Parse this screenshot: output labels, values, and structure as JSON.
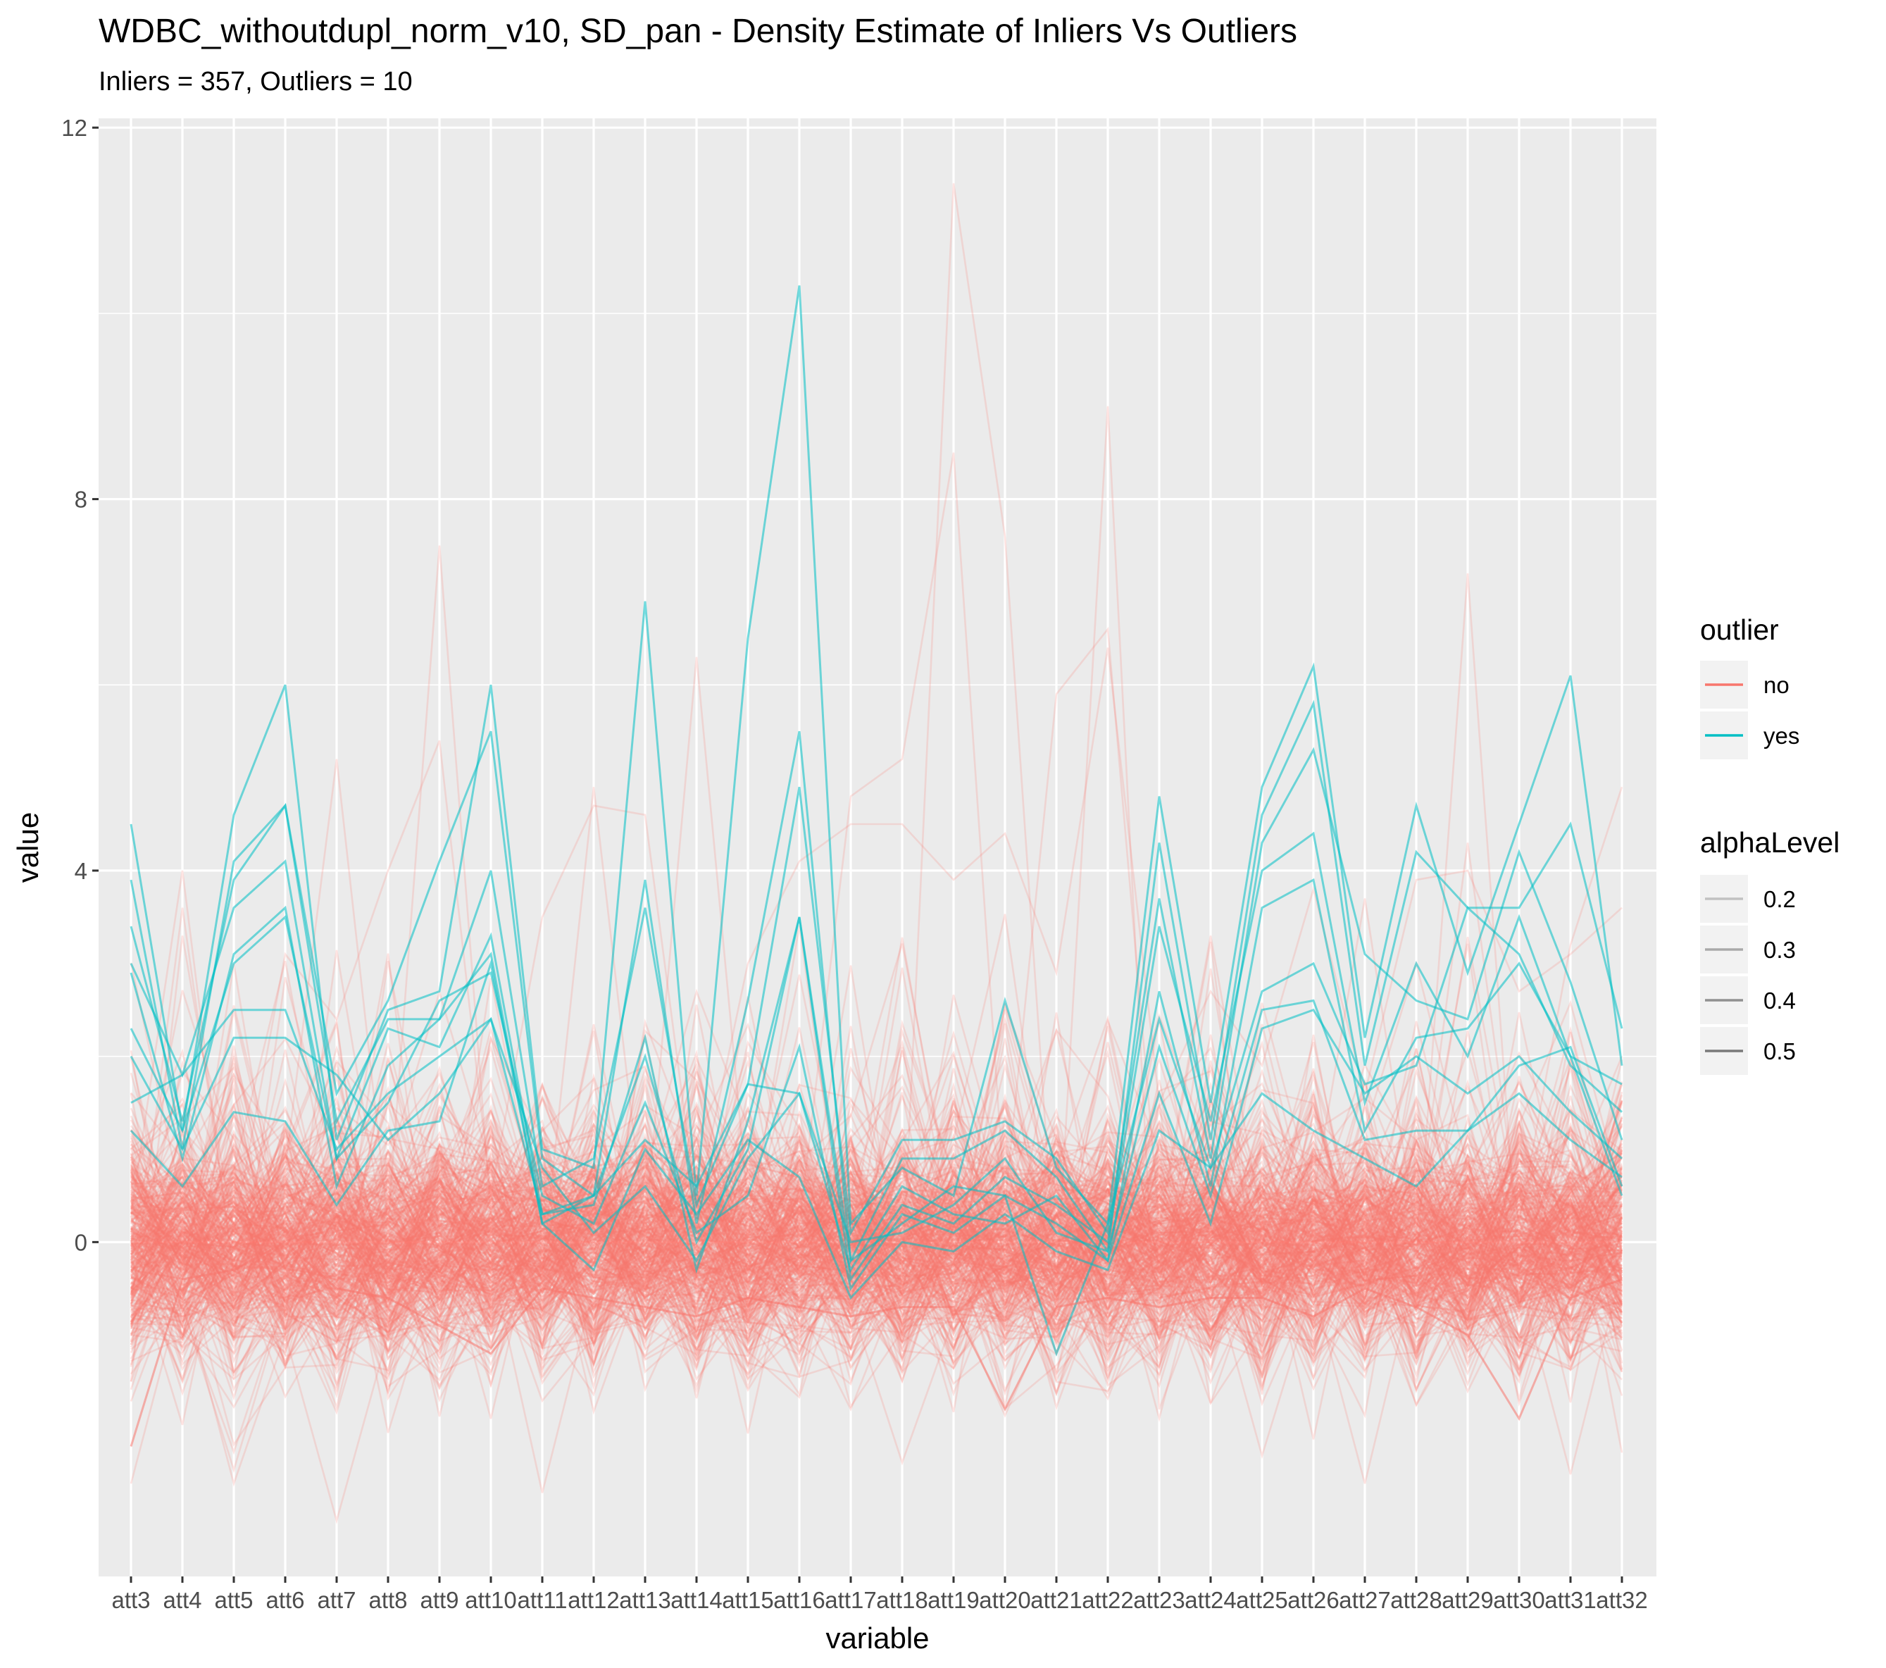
{
  "chart_data": {
    "type": "line",
    "title": "WDBC_withoutdupl_norm_v10, SD_pan - Density Estimate of Inliers Vs Outliers",
    "subtitle": "Inliers = 357, Outliers = 10",
    "xlabel": "variable",
    "ylabel": "value",
    "ylim": [
      -3.6,
      12.1
    ],
    "yticks": [
      0,
      4,
      8,
      12
    ],
    "grid": true,
    "categories": [
      "att3",
      "att4",
      "att5",
      "att6",
      "att7",
      "att8",
      "att9",
      "att10",
      "att11",
      "att12",
      "att13",
      "att14",
      "att15",
      "att16",
      "att17",
      "att18",
      "att19",
      "att20",
      "att21",
      "att22",
      "att23",
      "att24",
      "att25",
      "att26",
      "att27",
      "att28",
      "att29",
      "att30",
      "att31",
      "att32"
    ],
    "colors": {
      "no": "#F8766D",
      "yes": "#00BFC4",
      "panel": "#EBEBEB",
      "grid": "#FFFFFF"
    },
    "legend": {
      "placement": "right",
      "outlier_title": "outlier",
      "outlier_entries": [
        "no",
        "yes"
      ],
      "alpha_title": "alphaLevel",
      "alpha_entries": [
        "0.2",
        "0.3",
        "0.4",
        "0.5"
      ],
      "alpha_values": [
        0.2,
        0.3,
        0.4,
        0.5
      ]
    },
    "inlier_count": 357,
    "series": [
      {
        "outlier": "yes",
        "values": [
          4.5,
          1.2,
          4.6,
          6.0,
          1.1,
          2.5,
          2.7,
          6.0,
          1.0,
          0.8,
          6.9,
          0.5,
          6.5,
          10.3,
          0.2,
          0.8,
          0.5,
          2.6,
          0.8,
          0.2,
          4.8,
          1.5,
          4.9,
          6.2,
          2.2,
          4.7,
          2.9,
          4.5,
          6.1,
          1.9
        ]
      },
      {
        "outlier": "yes",
        "values": [
          3.9,
          1.0,
          4.1,
          4.7,
          1.6,
          2.6,
          4.1,
          5.5,
          0.9,
          0.5,
          3.9,
          0.2,
          2.6,
          5.5,
          -0.2,
          0.9,
          0.9,
          1.2,
          0.7,
          -0.1,
          4.3,
          1.1,
          4.6,
          5.8,
          1.9,
          4.2,
          3.6,
          3.6,
          4.5,
          2.3
        ]
      },
      {
        "outlier": "yes",
        "values": [
          3.4,
          1.3,
          3.9,
          4.7,
          1.3,
          2.4,
          2.4,
          4.0,
          0.6,
          0.9,
          3.6,
          0.4,
          1.7,
          4.9,
          0.1,
          1.1,
          1.1,
          1.3,
          0.9,
          0.1,
          3.7,
          0.9,
          4.3,
          5.3,
          3.1,
          2.6,
          2.4,
          4.2,
          2.8,
          1.1
        ]
      },
      {
        "outlier": "yes",
        "values": [
          3.0,
          1.8,
          3.6,
          4.1,
          0.9,
          2.3,
          2.1,
          3.3,
          0.3,
          0.4,
          2.2,
          -0.3,
          1.3,
          3.5,
          -0.4,
          0.4,
          0.2,
          0.7,
          0.4,
          0.0,
          3.4,
          1.3,
          4.0,
          4.4,
          1.5,
          3.0,
          2.0,
          3.5,
          2.0,
          1.7
        ]
      },
      {
        "outlier": "yes",
        "values": [
          2.9,
          0.9,
          3.1,
          3.6,
          0.6,
          1.9,
          2.4,
          3.1,
          0.2,
          0.5,
          2.0,
          0.0,
          1.0,
          3.5,
          -0.2,
          0.2,
          0.6,
          0.5,
          0.2,
          -0.2,
          2.7,
          0.6,
          3.6,
          3.9,
          1.2,
          2.2,
          2.3,
          3.0,
          2.0,
          0.5
        ]
      },
      {
        "outlier": "yes",
        "values": [
          2.3,
          1.2,
          3.0,
          3.5,
          0.9,
          1.5,
          2.6,
          2.9,
          0.5,
          0.2,
          1.5,
          0.1,
          0.5,
          2.1,
          -0.5,
          0.3,
          0.1,
          0.5,
          -1.2,
          0.2,
          2.4,
          0.8,
          2.7,
          3.0,
          1.7,
          1.9,
          3.6,
          3.1,
          1.9,
          1.4
        ]
      },
      {
        "outlier": "yes",
        "values": [
          1.5,
          1.8,
          2.5,
          2.5,
          1.0,
          1.6,
          2.0,
          2.4,
          0.3,
          0.5,
          1.1,
          0.6,
          1.7,
          1.6,
          0.0,
          0.1,
          0.4,
          0.9,
          0.1,
          -0.1,
          2.1,
          0.5,
          2.5,
          2.6,
          1.1,
          1.2,
          1.2,
          1.9,
          2.1,
          0.6
        ]
      },
      {
        "outlier": "yes",
        "values": [
          2.0,
          1.0,
          2.2,
          2.2,
          1.8,
          1.1,
          1.6,
          2.4,
          0.8,
          0.1,
          0.6,
          -0.2,
          0.9,
          1.6,
          -0.3,
          0.6,
          0.3,
          0.2,
          0.5,
          -0.2,
          1.6,
          0.2,
          2.3,
          2.5,
          1.6,
          2.0,
          1.6,
          2.0,
          1.4,
          0.9
        ]
      },
      {
        "outlier": "yes",
        "values": [
          1.2,
          0.6,
          1.4,
          1.3,
          0.4,
          1.2,
          1.3,
          3.0,
          0.2,
          -0.3,
          1.0,
          0.3,
          1.1,
          0.7,
          -0.6,
          0.0,
          -0.1,
          0.3,
          -0.1,
          -0.3,
          1.2,
          0.8,
          1.6,
          1.2,
          0.9,
          0.6,
          1.2,
          1.6,
          1.1,
          0.7
        ]
      },
      {
        "outlier": "no",
        "values": [
          -2.2,
          -0.4,
          -0.3,
          0.0,
          -0.5,
          -0.6,
          -0.9,
          -1.2,
          -0.5,
          -0.6,
          -0.7,
          -0.8,
          -0.6,
          -0.7,
          -0.8,
          -0.7,
          -0.7,
          -1.8,
          -0.7,
          -0.6,
          -0.7,
          -0.6,
          -0.6,
          -0.8,
          -0.5,
          -0.7,
          -1.0,
          -1.9,
          -0.6,
          -0.4
        ]
      }
    ],
    "inlier_extremes": [
      {
        "values": [
          -2.6,
          -0.5,
          -2.6,
          -1.0,
          -3.0,
          -1.0,
          -0.8,
          -0.2,
          -2.7,
          -0.5,
          -0.3,
          -0.6,
          -0.6,
          -0.7,
          -1.8,
          -0.4,
          11.4,
          7.6,
          -0.5,
          9.0,
          -1.8,
          -0.3,
          -2.3,
          -0.5,
          -2.6,
          -0.3,
          7.2,
          -0.4,
          -2.5,
          -0.3
        ]
      },
      {
        "values": [
          0.3,
          4.0,
          -0.4,
          0.8,
          5.2,
          0.2,
          7.5,
          0.3,
          -0.3,
          4.9,
          0.1,
          6.3,
          0.4,
          0.2,
          4.8,
          5.2,
          8.5,
          0.4,
          5.9,
          6.6,
          0.2,
          3.3,
          0.2,
          0.5,
          3.7,
          0.1,
          4.3,
          0.2,
          3.2,
          4.9
        ]
      },
      {
        "values": [
          -1.5,
          3.3,
          0.1,
          3.1,
          2.4,
          4.0,
          5.4,
          0.5,
          3.5,
          4.7,
          4.6,
          0.4,
          3.0,
          4.1,
          4.5,
          4.5,
          3.9,
          4.4,
          2.9,
          6.4,
          1.5,
          2.7,
          1.9,
          3.8,
          1.6,
          3.9,
          4.0,
          2.7,
          3.1,
          3.6
        ]
      }
    ]
  }
}
